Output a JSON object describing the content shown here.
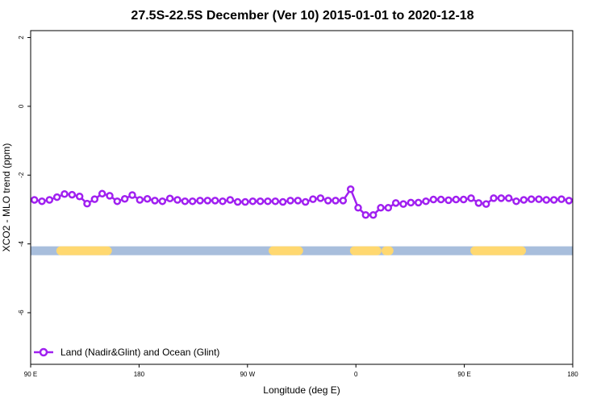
{
  "chart_data": {
    "type": "line",
    "title": "27.5S-22.5S December (Ver 10)   2015-01-01 to 2020-12-18",
    "xlabel": "Longitude (deg E)",
    "ylabel": "XCO2 - MLO trend (ppm)",
    "xlim": [
      90,
      450
    ],
    "ylim": [
      -7.5,
      2.2
    ],
    "x_ticks": [
      {
        "value": 90,
        "label": "90 E"
      },
      {
        "value": 162,
        "label": "180"
      },
      {
        "value": 234,
        "label": "90 W"
      },
      {
        "value": 306,
        "label": "0"
      },
      {
        "value": 378,
        "label": "90 E"
      },
      {
        "value": 450,
        "label": "180"
      }
    ],
    "y_ticks": [
      {
        "value": 2,
        "label": "2"
      },
      {
        "value": 0,
        "label": "0"
      },
      {
        "value": -2,
        "label": "-2"
      },
      {
        "value": -4,
        "label": "-4"
      },
      {
        "value": -6,
        "label": "-6"
      }
    ],
    "series": [
      {
        "name": "Land (Nadir&Glint) and Ocean (Glint)",
        "color": "#a020f0",
        "x": [
          92.5,
          97.5,
          102.5,
          107.5,
          112.5,
          117.5,
          122.5,
          127.5,
          132.5,
          137.5,
          142.5,
          147.5,
          152.5,
          157.5,
          162.5,
          167.5,
          172.5,
          177.5,
          182.5,
          187.5,
          192.5,
          197.5,
          202.5,
          207.5,
          212.5,
          217.5,
          222.5,
          227.5,
          232.5,
          237.5,
          242.5,
          247.5,
          252.5,
          257.5,
          262.5,
          267.5,
          272.5,
          277.5,
          282.5,
          287.5,
          292.5,
          297.5,
          302.5,
          307.5,
          312.5,
          317.5,
          322.5,
          327.5,
          332.5,
          337.5,
          342.5,
          347.5,
          352.5,
          357.5,
          362.5,
          367.5,
          372.5,
          377.5,
          382.5,
          387.5,
          392.5,
          397.5,
          402.5,
          407.5,
          412.5,
          417.5,
          422.5,
          427.5,
          432.5,
          437.5,
          442.5,
          447.5
        ],
        "y": [
          -2.72,
          -2.76,
          -2.72,
          -2.64,
          -2.55,
          -2.57,
          -2.62,
          -2.83,
          -2.7,
          -2.54,
          -2.6,
          -2.76,
          -2.69,
          -2.58,
          -2.72,
          -2.69,
          -2.74,
          -2.76,
          -2.68,
          -2.72,
          -2.76,
          -2.76,
          -2.74,
          -2.74,
          -2.74,
          -2.76,
          -2.72,
          -2.78,
          -2.78,
          -2.76,
          -2.76,
          -2.76,
          -2.76,
          -2.78,
          -2.74,
          -2.74,
          -2.78,
          -2.7,
          -2.67,
          -2.74,
          -2.74,
          -2.74,
          -2.41,
          -2.95,
          -3.16,
          -3.16,
          -2.95,
          -2.95,
          -2.81,
          -2.84,
          -2.8,
          -2.8,
          -2.76,
          -2.71,
          -2.71,
          -2.73,
          -2.71,
          -2.71,
          -2.67,
          -2.81,
          -2.84,
          -2.67,
          -2.67,
          -2.67,
          -2.76,
          -2.72,
          -2.7,
          -2.7,
          -2.72,
          -2.72,
          -2.7,
          -2.74
        ]
      }
    ],
    "surface_band": {
      "y": -4.2,
      "ocean_color": "#a8bedc",
      "land_color": "#ffd870",
      "land_ranges": [
        [
          110,
          141
        ],
        [
          251,
          268
        ],
        [
          305,
          320
        ],
        [
          326,
          328
        ],
        [
          385,
          416
        ]
      ]
    },
    "legend_position": "bottom-left",
    "grid": false
  }
}
